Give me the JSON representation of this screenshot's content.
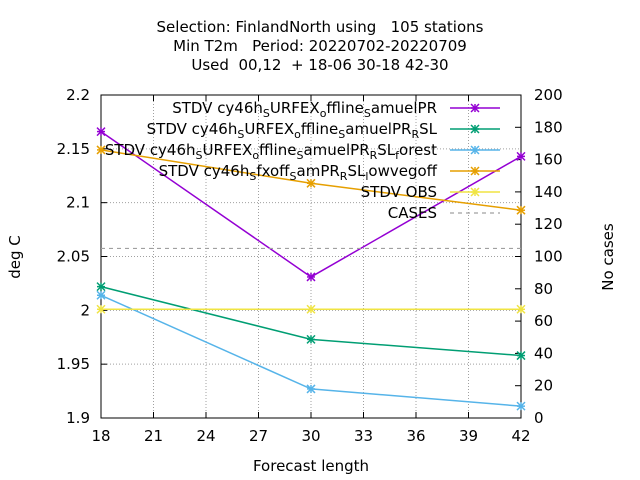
{
  "title_lines": [
    "Selection: FinlandNorth using   105 stations",
    "Min T2m   Period: 20220702-20220709",
    "Used  00,12  + 18-06 30-18 42-30"
  ],
  "chart_data": {
    "type": "line",
    "xlabel": "Forecast length",
    "ylabel": "deg C",
    "y2label": "No cases",
    "xlim": [
      18,
      42
    ],
    "ylim": [
      1.9,
      2.2
    ],
    "y2lim": [
      0,
      200
    ],
    "xticks": [
      "18",
      "21",
      "24",
      "27",
      "30",
      "33",
      "36",
      "39",
      "42"
    ],
    "yticks": [
      "1.9",
      "1.95",
      "2",
      "2.05",
      "2.1",
      "2.15",
      "2.2"
    ],
    "y2ticks": [
      "0",
      "20",
      "40",
      "60",
      "80",
      "100",
      "120",
      "140",
      "160",
      "180",
      "200"
    ],
    "grid": true,
    "legend_position": "top-right",
    "x": [
      18,
      30,
      42
    ],
    "series": [
      {
        "name": "STDV cy46h_S URFEX_o ffline_S amuelPR",
        "label_parts": [
          [
            "STDV cy46h",
            ""
          ],
          [
            "S",
            "sub"
          ],
          [
            "URFEX",
            ""
          ],
          [
            "o",
            "sub"
          ],
          [
            "ffline",
            ""
          ],
          [
            "S",
            "sub"
          ],
          [
            "amuelPR",
            ""
          ]
        ],
        "color": "#9400d3",
        "axis": "y",
        "values": [
          2.166,
          2.031,
          2.143
        ]
      },
      {
        "name": "STDV cy46h_S URFEX_o ffline_S amuelPR_R SL",
        "label_parts": [
          [
            "STDV cy46h",
            ""
          ],
          [
            "S",
            "sub"
          ],
          [
            "URFEX",
            ""
          ],
          [
            "o",
            "sub"
          ],
          [
            "ffline",
            ""
          ],
          [
            "S",
            "sub"
          ],
          [
            "amuelPR",
            ""
          ],
          [
            "R",
            "sub"
          ],
          [
            "SL",
            ""
          ]
        ],
        "color": "#009e73",
        "axis": "y",
        "values": [
          2.022,
          1.973,
          1.958
        ]
      },
      {
        "name": "STDV cy46h_S URFEX_o ffline_S amuelPR_R SL_f orest",
        "label_parts": [
          [
            "STDV cy46h",
            ""
          ],
          [
            "S",
            "sub"
          ],
          [
            "URFEX",
            ""
          ],
          [
            "o",
            "sub"
          ],
          [
            "ffline",
            ""
          ],
          [
            "S",
            "sub"
          ],
          [
            "amuelPR",
            ""
          ],
          [
            "R",
            "sub"
          ],
          [
            "SL",
            ""
          ],
          [
            "f",
            "sub"
          ],
          [
            "orest",
            ""
          ]
        ],
        "color": "#56b4e9",
        "axis": "y",
        "values": [
          2.014,
          1.927,
          1.911
        ]
      },
      {
        "name": "STDV cy46h_S fxoff_S amPR_R SL_l owvegoff",
        "label_parts": [
          [
            "STDV cy46h",
            ""
          ],
          [
            "S",
            "sub"
          ],
          [
            "fxoff",
            ""
          ],
          [
            "S",
            "sub"
          ],
          [
            "amPR",
            ""
          ],
          [
            "R",
            "sub"
          ],
          [
            "SL",
            ""
          ],
          [
            "l",
            "sub"
          ],
          [
            "owvegoff",
            ""
          ]
        ],
        "color": "#e69f00",
        "axis": "y",
        "values": [
          2.149,
          2.118,
          2.093
        ]
      },
      {
        "name": "STDV OBS",
        "label_parts": [
          [
            "STDV OBS",
            ""
          ]
        ],
        "color": "#f0e442",
        "axis": "y",
        "values": [
          2.001,
          2.001,
          2.001
        ]
      },
      {
        "name": "CASES",
        "label_parts": [
          [
            "CASES",
            ""
          ]
        ],
        "color": "#a0a0a0",
        "axis": "y2",
        "dashed": true,
        "values": [
          105,
          105,
          105
        ]
      }
    ]
  }
}
